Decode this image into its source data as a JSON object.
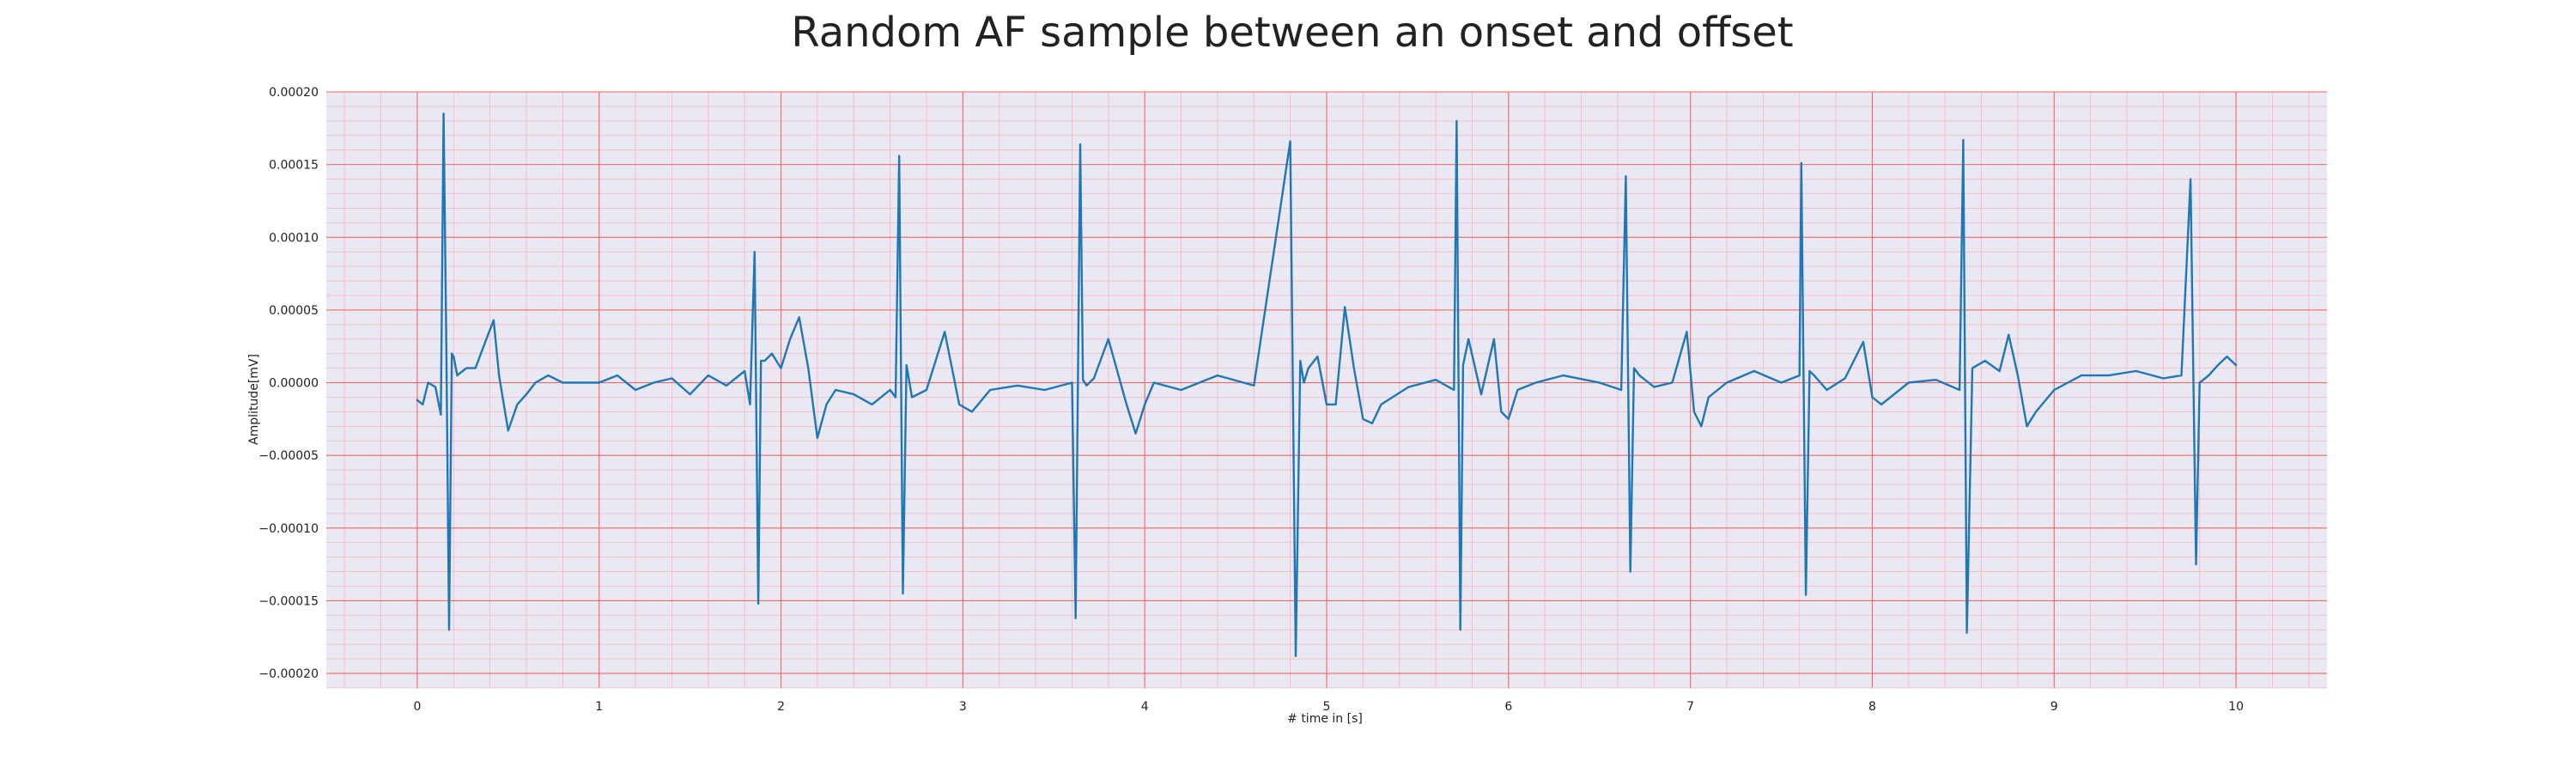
{
  "chart_data": {
    "type": "line",
    "title": "Random AF sample between an onset and offset",
    "xlabel": "# time in [s]",
    "ylabel": "Amplitude[mV]",
    "xlim": [
      -0.5,
      10.5
    ],
    "ylim": [
      -0.00021,
      0.0002
    ],
    "xticks": [
      0,
      1,
      2,
      3,
      4,
      5,
      6,
      7,
      8,
      9,
      10
    ],
    "xtick_labels": [
      "0",
      "1",
      "2",
      "3",
      "4",
      "5",
      "6",
      "7",
      "8",
      "9",
      "10"
    ],
    "yticks": [
      -0.0002,
      -0.00015,
      -0.0001,
      -5e-05,
      0.0,
      5e-05,
      0.0001,
      0.00015,
      0.0002
    ],
    "ytick_labels": [
      "−0.00020",
      "−0.00015",
      "−0.00010",
      "−0.00005",
      "0.00000",
      "0.00005",
      "0.00010",
      "0.00015",
      "0.00020"
    ],
    "grid": true,
    "minor_grid": true,
    "background_color": "#eae8f2",
    "major_grid_color": "#f06a6a",
    "minor_grid_color": "#f3b8c0",
    "series": [
      {
        "color": "#1f77b4",
        "x": [
          0.0,
          0.03,
          0.06,
          0.1,
          0.13,
          0.145,
          0.16,
          0.175,
          0.19,
          0.2,
          0.22,
          0.27,
          0.32,
          0.38,
          0.42,
          0.45,
          0.5,
          0.55,
          0.6,
          0.65,
          0.72,
          0.8,
          0.9,
          1.0,
          1.1,
          1.2,
          1.3,
          1.4,
          1.5,
          1.6,
          1.7,
          1.8,
          1.83,
          1.855,
          1.875,
          1.89,
          1.91,
          1.95,
          2.0,
          2.05,
          2.1,
          2.15,
          2.2,
          2.25,
          2.3,
          2.4,
          2.5,
          2.6,
          2.63,
          2.65,
          2.67,
          2.69,
          2.72,
          2.8,
          2.9,
          2.98,
          3.05,
          3.15,
          3.3,
          3.45,
          3.6,
          3.62,
          3.645,
          3.66,
          3.68,
          3.72,
          3.8,
          3.9,
          3.95,
          4.0,
          4.05,
          4.2,
          4.4,
          4.6,
          4.8,
          4.83,
          4.855,
          4.875,
          4.9,
          4.95,
          5.0,
          5.05,
          5.1,
          5.15,
          5.2,
          5.25,
          5.3,
          5.45,
          5.6,
          5.7,
          5.715,
          5.735,
          5.75,
          5.78,
          5.85,
          5.92,
          5.96,
          6.0,
          6.05,
          6.15,
          6.3,
          6.5,
          6.62,
          6.645,
          6.67,
          6.69,
          6.72,
          6.8,
          6.9,
          6.98,
          7.02,
          7.06,
          7.1,
          7.2,
          7.35,
          7.5,
          7.6,
          7.61,
          7.635,
          7.655,
          7.68,
          7.75,
          7.85,
          7.95,
          8.0,
          8.05,
          8.2,
          8.35,
          8.48,
          8.5,
          8.52,
          8.55,
          8.62,
          8.7,
          8.75,
          8.8,
          8.85,
          8.9,
          9.0,
          9.15,
          9.3,
          9.45,
          9.6,
          9.7,
          9.75,
          9.78,
          9.8,
          9.82,
          9.85,
          9.9,
          9.95,
          10.0
        ],
        "y": [
          -1.2e-05,
          -1.5e-05,
          0.0,
          -3e-06,
          -2.2e-05,
          0.000185,
          2.5e-05,
          -0.00017,
          2e-05,
          1.8e-05,
          5e-06,
          1e-05,
          1e-05,
          3e-05,
          4.3e-05,
          5e-06,
          -3.3e-05,
          -1.5e-05,
          -8e-06,
          0.0,
          5e-06,
          0.0,
          0.0,
          0.0,
          5e-06,
          -5e-06,
          0.0,
          3e-06,
          -8e-06,
          5e-06,
          -2e-06,
          8e-06,
          -1.5e-05,
          9e-05,
          -0.000152,
          1.5e-05,
          1.5e-05,
          2e-05,
          1e-05,
          3e-05,
          4.5e-05,
          1e-05,
          -3.8e-05,
          -1.5e-05,
          -5e-06,
          -8e-06,
          -1.5e-05,
          -5e-06,
          -1e-05,
          0.000156,
          -0.000145,
          1.2e-05,
          -1e-05,
          -5e-06,
          3.5e-05,
          -1.5e-05,
          -2e-05,
          -5e-06,
          -2e-06,
          -5e-06,
          0.0,
          -0.000162,
          0.000164,
          2e-06,
          -2e-06,
          3e-06,
          3e-05,
          -1.5e-05,
          -3.5e-05,
          -1.5e-05,
          0.0,
          -5e-06,
          5e-06,
          -2e-06,
          0.000166,
          -0.000188,
          1.5e-05,
          0.0,
          1e-05,
          1.8e-05,
          -1.5e-05,
          -1.5e-05,
          5.2e-05,
          1e-05,
          -2.5e-05,
          -2.8e-05,
          -1.5e-05,
          -3e-06,
          2e-06,
          -5e-06,
          0.00018,
          -0.00017,
          1.2e-05,
          3e-05,
          -8e-06,
          3e-05,
          -2e-05,
          -2.5e-05,
          -5e-06,
          0.0,
          5e-06,
          0.0,
          -5e-06,
          0.000142,
          -0.00013,
          1e-05,
          5e-06,
          -3e-06,
          0.0,
          3.5e-05,
          -2e-05,
          -3e-05,
          -1e-05,
          0.0,
          8e-06,
          0.0,
          5e-06,
          0.000151,
          -0.000146,
          8e-06,
          5e-06,
          -5e-06,
          3e-06,
          2.8e-05,
          -1e-05,
          -1.5e-05,
          0.0,
          2e-06,
          -5e-06,
          0.000167,
          -0.000172,
          1e-05,
          1.5e-05,
          8e-06,
          3.3e-05,
          5e-06,
          -3e-05,
          -2e-05,
          -5e-06,
          5e-06,
          5e-06,
          8e-06,
          3e-06,
          5e-06,
          0.00014,
          -0.000125,
          0.0,
          2e-06,
          5e-06,
          1.2e-05,
          1.8e-05,
          1.2e-05
        ]
      }
    ]
  }
}
